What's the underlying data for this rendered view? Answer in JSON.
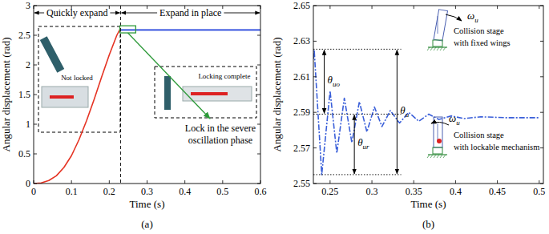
{
  "chart_data": [
    {
      "type": "line",
      "subtitle": "(a)",
      "x_label": "Time (s)",
      "y_label": "Angular displacement (rad)",
      "xlim": [
        0,
        0.6
      ],
      "xticks": [
        0,
        0.1,
        0.2,
        0.3,
        0.4,
        0.5,
        0.6
      ],
      "ylim": [
        0,
        3
      ],
      "yticks": [
        0,
        0.5,
        1,
        1.5,
        2,
        2.5,
        3
      ],
      "grid": false,
      "series": [
        {
          "color": "#e53323",
          "line_style": "solid",
          "x": [
            0,
            0.02,
            0.04,
            0.06,
            0.08,
            0.1,
            0.12,
            0.14,
            0.16,
            0.18,
            0.2,
            0.22,
            0.23
          ],
          "values": [
            0,
            0.01,
            0.05,
            0.13,
            0.27,
            0.47,
            0.74,
            1.06,
            1.42,
            1.8,
            2.17,
            2.5,
            2.62
          ]
        },
        {
          "color": "#1f3fdb",
          "line_style": "solid",
          "x": [
            0.23,
            0.6
          ],
          "values": [
            2.59,
            2.59
          ]
        }
      ],
      "annotations": {
        "phase_split": 0.23,
        "phases": [
          "Quickly expand",
          "Expand in place"
        ],
        "inset_labels": [
          "Not locked",
          "Locking complete"
        ],
        "callout": [
          "Lock in the severe",
          "oscillation phase"
        ],
        "zoom_box": {
          "x": [
            0.228,
            0.27
          ],
          "y": [
            2.54,
            2.66
          ]
        }
      }
    },
    {
      "type": "line",
      "subtitle": "(b)",
      "x_label": "Time (s)",
      "y_label": "Angular displacement (rad)",
      "xlim": [
        0.23,
        0.505
      ],
      "xticks": [
        0.25,
        0.3,
        0.35,
        0.4,
        0.45,
        0.5
      ],
      "ylim": [
        2.55,
        2.65
      ],
      "yticks": [
        2.55,
        2.57,
        2.59,
        2.61,
        2.63,
        2.65
      ],
      "grid": false,
      "series": [
        {
          "color": "#3a5fd9",
          "line_style": "dashdot",
          "x": [
            0.23,
            0.231,
            0.24,
            0.25,
            0.258,
            0.267,
            0.276,
            0.285,
            0.294,
            0.303,
            0.312,
            0.322,
            0.333,
            0.344,
            0.356,
            0.368,
            0.38,
            0.395,
            0.41,
            0.43,
            0.46,
            0.5
          ],
          "values": [
            2.62,
            2.625,
            2.555,
            2.602,
            2.567,
            2.598,
            2.573,
            2.596,
            2.579,
            2.593,
            2.582,
            2.591,
            2.584,
            2.59,
            2.585,
            2.589,
            2.586,
            2.588,
            2.5865,
            2.5875,
            2.587,
            2.587
          ]
        }
      ],
      "annotations": {
        "levels": [
          2.6255,
          2.589,
          2.555
        ],
        "levels_x": [
          0.23,
          0.335
        ],
        "measures": [
          {
            "text": "θ",
            "sub": "uo",
            "x": 0.243,
            "y": [
              2.6255,
              2.589
            ]
          },
          {
            "text": "θ",
            "sub": "u",
            "x": 0.33,
            "y": [
              2.6255,
              2.555
            ]
          },
          {
            "text": "θ",
            "sub": "ur",
            "x": 0.279,
            "y": [
              2.589,
              2.555
            ]
          }
        ],
        "stages": [
          {
            "lines": [
              "Collision stage",
              "with fixed wings"
            ],
            "omega": {
              "text": "ω",
              "sub": "u"
            }
          },
          {
            "lines": [
              "Collision stage",
              "with lockable mechanism"
            ],
            "omega": {
              "text": "ω",
              "sub": "u"
            }
          }
        ]
      }
    }
  ]
}
